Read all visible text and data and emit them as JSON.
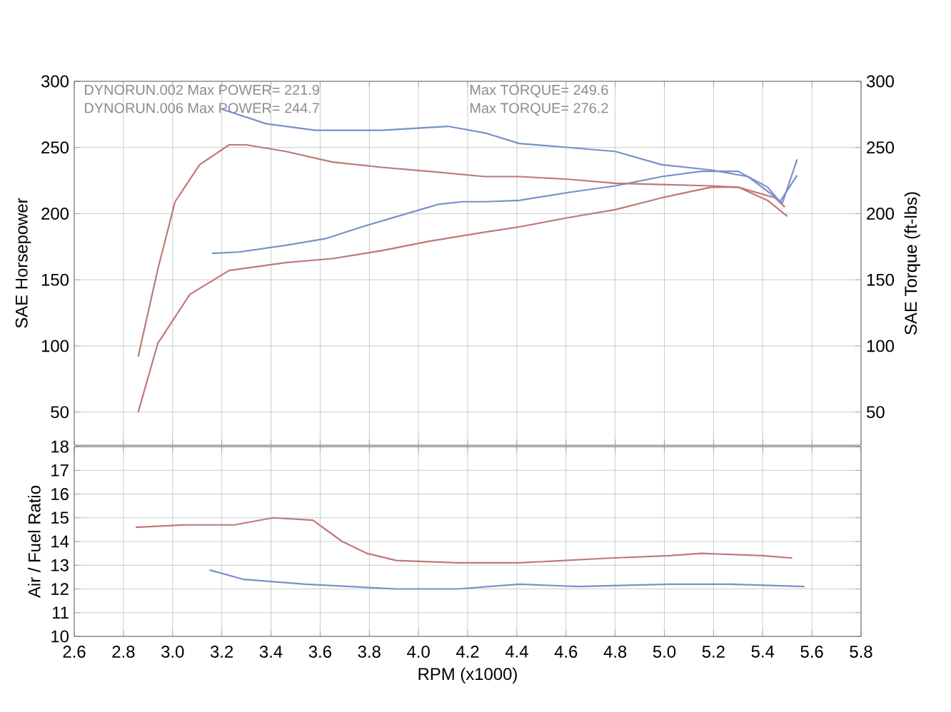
{
  "chart_data": [
    {
      "type": "line",
      "ylabel": "SAE Horsepower",
      "y2label": "SAE Torque (ft-lbs)",
      "annotations": [
        "DYNORUN.002  Max POWER= 221.9",
        "DYNORUN.006  Max POWER= 244.7",
        "Max TORQUE= 249.6",
        "Max TORQUE= 276.2"
      ],
      "xlim": [
        2.6,
        5.8
      ],
      "xticks": [
        2.6,
        2.8,
        3,
        3.2,
        3.4,
        3.6,
        3.8,
        4,
        4.2,
        4.4,
        4.6,
        4.8,
        5,
        5.2,
        5.4,
        5.6,
        5.8
      ],
      "ylim": [
        25,
        300
      ],
      "yticks": [
        50,
        100,
        150,
        200,
        250,
        300
      ],
      "y2lim": [
        25,
        300
      ],
      "y2ticks": [
        50,
        100,
        150,
        200,
        250,
        300
      ],
      "grid": true,
      "tick_labels": "y",
      "series": [
        {
          "color": "#c07878",
          "x": [
            2.86,
            2.94,
            3.07,
            3.23,
            3.46,
            3.65,
            3.85,
            4.04,
            4.27,
            4.41,
            4.61,
            4.8,
            4.99,
            5.19,
            5.3,
            5.45,
            5.49
          ],
          "values": [
            50,
            102,
            139,
            157,
            163,
            166,
            172,
            179,
            186,
            190,
            197,
            203,
            212,
            220,
            220,
            212,
            205
          ]
        },
        {
          "color": "#7890c8",
          "x": [
            3.16,
            3.27,
            3.46,
            3.62,
            3.77,
            3.97,
            4.08,
            4.18,
            4.27,
            4.41,
            4.61,
            4.8,
            4.99,
            5.15,
            5.3,
            5.42,
            5.47,
            5.54
          ],
          "values": [
            170,
            171,
            176,
            181,
            190,
            201,
            207,
            209,
            209,
            210,
            216,
            221,
            228,
            232,
            232,
            220,
            209,
            229
          ]
        },
        {
          "color": "#c07878",
          "axis": "y2",
          "x": [
            2.86,
            2.94,
            3.01,
            3.11,
            3.23,
            3.3,
            3.46,
            3.65,
            3.85,
            4.04,
            4.27,
            4.41,
            4.61,
            4.8,
            4.99,
            5.19,
            5.3,
            5.42,
            5.5
          ],
          "values": [
            92,
            158,
            209,
            237,
            252,
            252,
            247,
            239,
            235,
            232,
            228,
            228,
            226,
            223,
            222,
            221,
            220,
            210,
            198
          ]
        },
        {
          "color": "#7890c8",
          "axis": "y2",
          "x": [
            3.2,
            3.38,
            3.58,
            3.85,
            4.12,
            4.27,
            4.41,
            4.61,
            4.8,
            4.99,
            5.19,
            5.34,
            5.44,
            5.48,
            5.54
          ],
          "values": [
            279,
            268,
            263,
            263,
            266,
            261,
            253,
            250,
            247,
            237,
            233,
            228,
            214,
            208,
            241
          ]
        }
      ]
    },
    {
      "type": "line",
      "xlabel": "RPM (x1000)",
      "ylabel": "Air / Fuel Ratio",
      "xlim": [
        2.6,
        5.8
      ],
      "xticks": [
        2.6,
        2.8,
        {
          "value": 3,
          "label": "3.0"
        },
        3.2,
        3.4,
        3.6,
        3.8,
        {
          "value": 4,
          "label": "4.0"
        },
        4.2,
        4.4,
        4.6,
        4.8,
        {
          "value": 5,
          "label": "5.0"
        },
        5.2,
        5.4,
        5.6,
        5.8
      ],
      "ylim": [
        10,
        18
      ],
      "yticks": [
        10,
        11,
        12,
        13,
        14,
        15,
        16,
        17,
        18
      ],
      "grid": true,
      "series": [
        {
          "color": "#c07878",
          "x": [
            2.85,
            3.05,
            3.25,
            3.41,
            3.57,
            3.69,
            3.79,
            3.91,
            4.16,
            4.41,
            4.78,
            5.02,
            5.15,
            5.4,
            5.52
          ],
          "values": [
            14.6,
            14.7,
            14.7,
            15.0,
            14.9,
            14.0,
            13.5,
            13.2,
            13.1,
            13.1,
            13.3,
            13.4,
            13.5,
            13.4,
            13.3
          ]
        },
        {
          "color": "#7890c8",
          "x": [
            3.15,
            3.29,
            3.54,
            3.91,
            4.16,
            4.41,
            4.65,
            5.02,
            5.27,
            5.57
          ],
          "values": [
            12.8,
            12.4,
            12.2,
            12.0,
            12.0,
            12.2,
            12.1,
            12.2,
            12.2,
            12.1
          ]
        }
      ]
    }
  ]
}
